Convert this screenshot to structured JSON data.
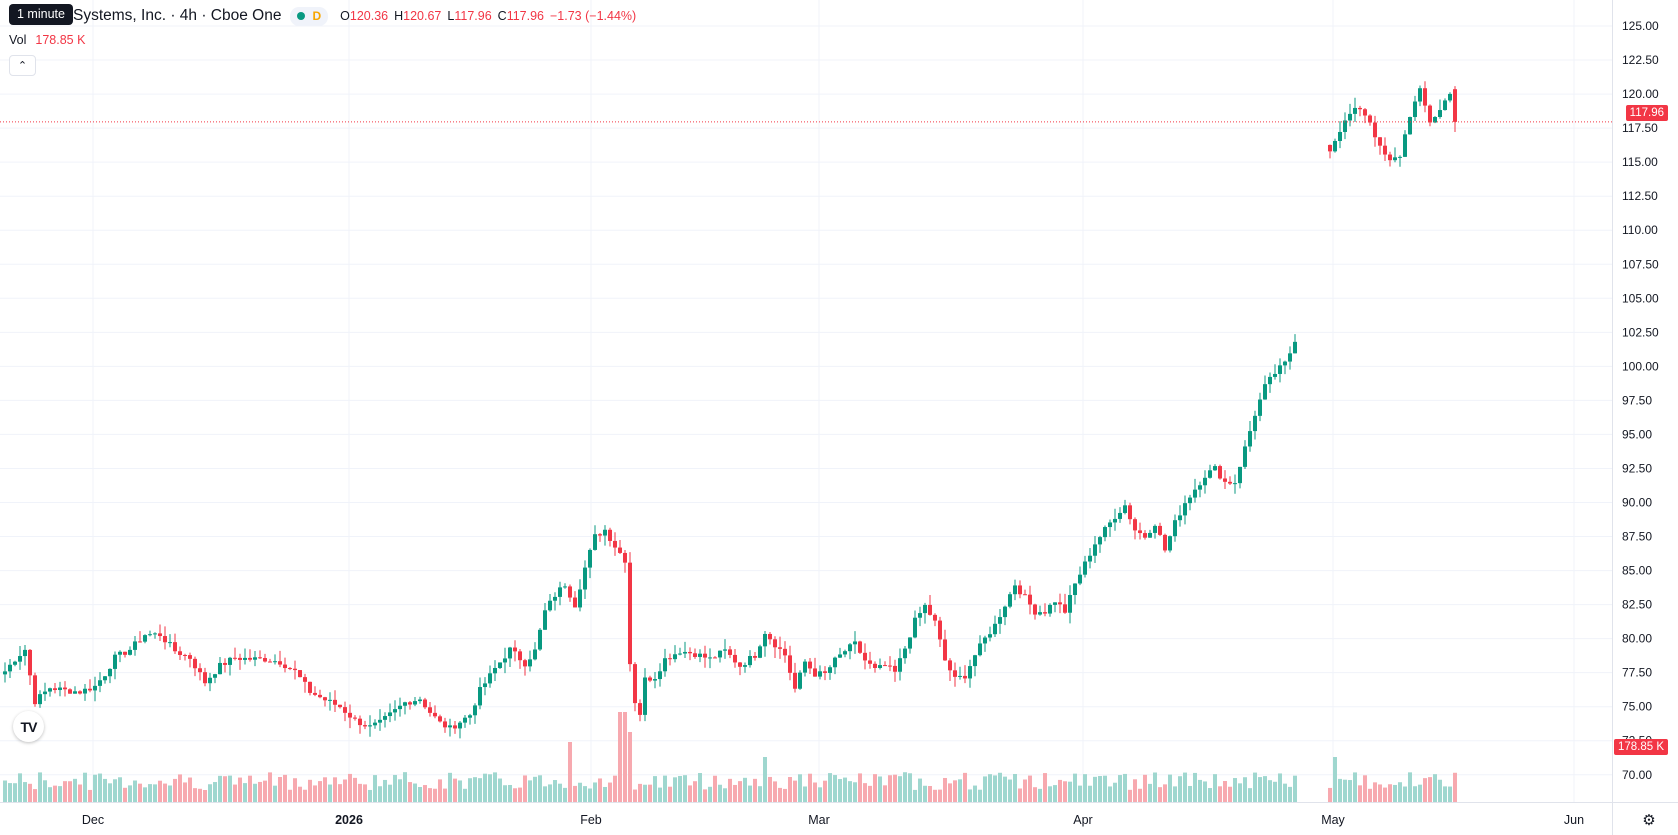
{
  "legend": {
    "symbol_title": "Systems, Inc. · 4h · Cboe One",
    "status_letter": "D",
    "open_label": "O",
    "open": "120.36",
    "high_label": "H",
    "high": "120.67",
    "low_label": "L",
    "low": "117.96",
    "close_label": "C",
    "close": "117.96",
    "change": "−1.73 (−1.44%)"
  },
  "tooltip": "1 minute",
  "volume": {
    "label": "Vol",
    "value": "178.85 K"
  },
  "logo_text": "TV",
  "current_price_tag": "117.96",
  "current_volume_tag": "178.85 K",
  "icons": {
    "collapse": "chevron-up-icon",
    "settings": "gear-icon",
    "logo": "tradingview-logo"
  },
  "colors": {
    "up": "#089981",
    "down": "#f23645",
    "up_volume": "#9fd7cf",
    "down_volume": "#f7a9af",
    "grid": "#f0f3fa"
  },
  "chart_data": {
    "type": "candlestick",
    "interval": "4h",
    "y_axis_labels": [
      "125.00",
      "122.50",
      "120.00",
      "117.50",
      "115.00",
      "112.50",
      "110.00",
      "107.50",
      "105.00",
      "102.50",
      "100.00",
      "97.50",
      "95.00",
      "92.50",
      "90.00",
      "87.50",
      "85.00",
      "82.50",
      "80.00",
      "77.50",
      "75.00",
      "72.50",
      "70.00"
    ],
    "x_axis_labels": [
      "Dec",
      "2026",
      "Feb",
      "Mar",
      "Apr",
      "May",
      "Jun"
    ],
    "ylim": [
      68.0,
      126.5
    ],
    "last_price": 117.96,
    "grid": true,
    "close_series": [
      [
        0,
        77.6
      ],
      [
        2,
        78.5
      ],
      [
        4,
        79.2
      ],
      [
        6,
        75.4
      ],
      [
        9,
        76.4
      ],
      [
        12,
        76.2
      ],
      [
        15,
        76.1
      ],
      [
        18,
        76.5
      ],
      [
        20,
        77.4
      ],
      [
        22,
        78.6
      ],
      [
        25,
        79.2
      ],
      [
        28,
        80.3
      ],
      [
        31,
        80.3
      ],
      [
        34,
        79.1
      ],
      [
        37,
        78.6
      ],
      [
        40,
        76.8
      ],
      [
        43,
        78.0
      ],
      [
        46,
        78.6
      ],
      [
        49,
        78.5
      ],
      [
        52,
        78.5
      ],
      [
        55,
        78.3
      ],
      [
        58,
        77.6
      ],
      [
        61,
        76.1
      ],
      [
        64,
        75.5
      ],
      [
        67,
        75.0
      ],
      [
        70,
        74.0
      ],
      [
        73,
        73.5
      ],
      [
        75,
        73.8
      ],
      [
        77,
        74.4
      ],
      [
        80,
        75.3
      ],
      [
        83,
        75.6
      ],
      [
        85,
        74.6
      ],
      [
        87,
        73.8
      ],
      [
        89,
        73.4
      ],
      [
        91,
        73.9
      ],
      [
        93,
        74.4
      ],
      [
        95,
        76.2
      ],
      [
        98,
        77.8
      ],
      [
        101,
        79.2
      ],
      [
        104,
        78.2
      ],
      [
        106,
        79.1
      ],
      [
        108,
        82.0
      ],
      [
        110,
        83.2
      ],
      [
        112,
        84.0
      ],
      [
        114,
        82.5
      ],
      [
        116,
        85.2
      ],
      [
        118,
        87.5
      ],
      [
        120,
        88.0
      ],
      [
        122,
        86.8
      ],
      [
        124,
        85.8
      ],
      [
        125,
        78.2
      ],
      [
        126,
        75.4
      ],
      [
        127,
        74.5
      ],
      [
        128,
        77.0
      ],
      [
        130,
        77.2
      ],
      [
        132,
        78.5
      ],
      [
        135,
        79.1
      ],
      [
        138,
        78.9
      ],
      [
        141,
        78.5
      ],
      [
        144,
        79.1
      ],
      [
        147,
        78.0
      ],
      [
        150,
        78.8
      ],
      [
        152,
        80.5
      ],
      [
        154,
        79.6
      ],
      [
        156,
        78.8
      ],
      [
        158,
        76.3
      ],
      [
        160,
        78.3
      ],
      [
        162,
        77.4
      ],
      [
        164,
        77.4
      ],
      [
        166,
        78.4
      ],
      [
        168,
        79.1
      ],
      [
        170,
        79.6
      ],
      [
        172,
        78.4
      ],
      [
        174,
        77.7
      ],
      [
        176,
        78.0
      ],
      [
        178,
        77.5
      ],
      [
        180,
        79.3
      ],
      [
        182,
        81.3
      ],
      [
        184,
        82.4
      ],
      [
        186,
        81.2
      ],
      [
        188,
        78.4
      ],
      [
        190,
        77.0
      ],
      [
        192,
        77.3
      ],
      [
        194,
        78.8
      ],
      [
        196,
        80.0
      ],
      [
        198,
        81.0
      ],
      [
        200,
        82.5
      ],
      [
        202,
        84.0
      ],
      [
        204,
        83.0
      ],
      [
        206,
        82.0
      ],
      [
        208,
        82.0
      ],
      [
        210,
        82.8
      ],
      [
        212,
        82.0
      ],
      [
        214,
        84.0
      ],
      [
        216,
        85.5
      ],
      [
        218,
        87.0
      ],
      [
        220,
        88.0
      ],
      [
        222,
        89.0
      ],
      [
        224,
        89.8
      ],
      [
        226,
        88.0
      ],
      [
        228,
        87.5
      ],
      [
        230,
        88.5
      ],
      [
        232,
        86.5
      ],
      [
        234,
        88.5
      ],
      [
        236,
        90.0
      ],
      [
        238,
        91.0
      ],
      [
        240,
        92.0
      ],
      [
        242,
        92.5
      ],
      [
        244,
        91.5
      ],
      [
        246,
        91.5
      ],
      [
        248,
        94.0
      ],
      [
        250,
        96.5
      ],
      [
        252,
        98.5
      ],
      [
        254,
        99.5
      ],
      [
        256,
        100.2
      ],
      [
        258,
        101.8
      ],
      [
        265,
        116.0
      ],
      [
        267,
        117.4
      ],
      [
        269,
        118.5
      ],
      [
        271,
        119.0
      ],
      [
        273,
        118.0
      ],
      [
        275,
        116.0
      ],
      [
        277,
        115.0
      ],
      [
        279,
        115.5
      ],
      [
        281,
        118.5
      ],
      [
        283,
        120.2
      ],
      [
        285,
        118.0
      ],
      [
        287,
        118.8
      ],
      [
        289,
        120.2
      ],
      [
        290,
        117.96
      ]
    ],
    "volume_relative": "bars scale to a max of about 3x the typical bar; highest bars near Feb 10 and May 15"
  }
}
